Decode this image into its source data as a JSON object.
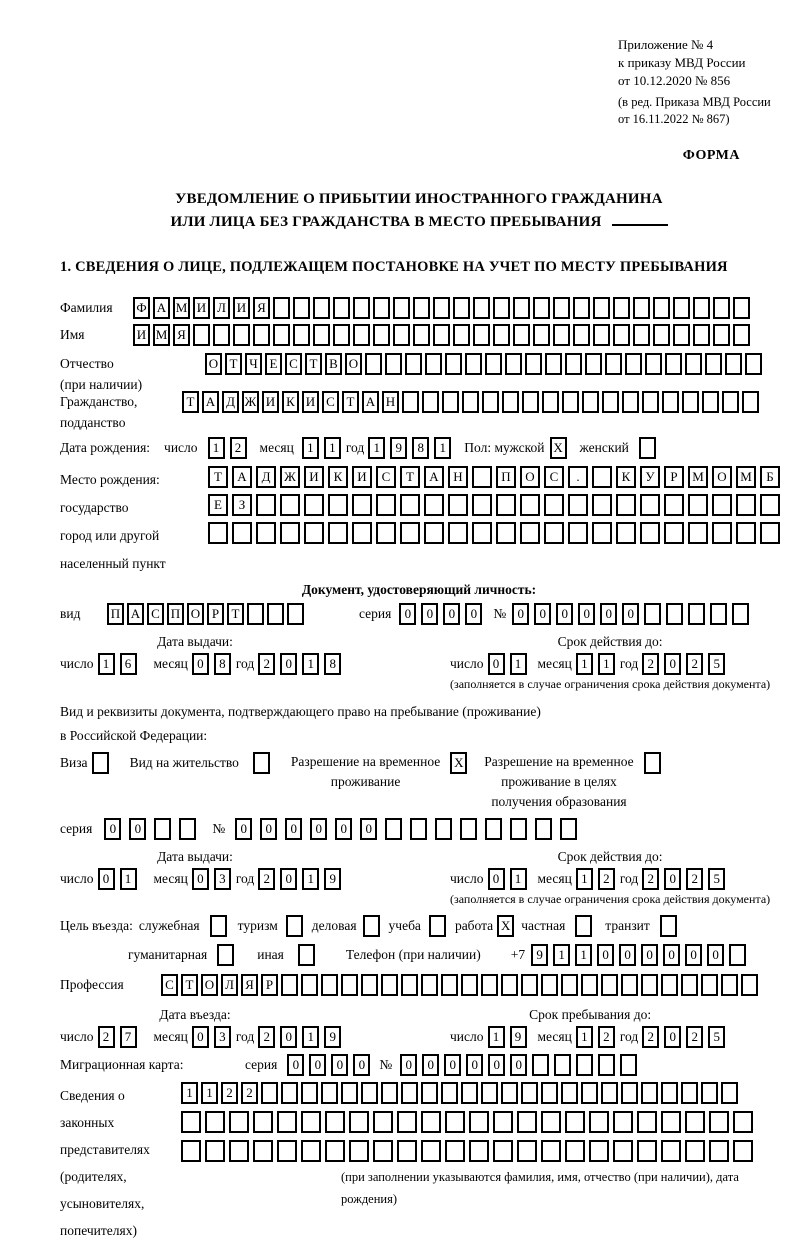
{
  "header": {
    "line1": "Приложение № 4",
    "line2": "к приказу МВД России",
    "line3": "от 10.12.2020 № 856",
    "line4": "(в ред. Приказа МВД России",
    "line5": "от 16.11.2022 № 867)",
    "forma": "ФОРМА"
  },
  "title": {
    "line1": "УВЕДОМЛЕНИЕ О ПРИБЫТИИ ИНОСТРАННОГО ГРАЖДАНИНА",
    "line2": "ИЛИ ЛИЦА БЕЗ ГРАЖДАНСТВА В МЕСТО ПРЕБЫВАНИЯ"
  },
  "section1": {
    "heading": "1. СВЕДЕНИЯ О ЛИЦЕ, ПОДЛЕЖАЩЕМ ПОСТАНОВКЕ НА УЧЕТ ПО МЕСТУ ПРЕБЫВАНИЯ"
  },
  "labels": {
    "surname": "Фамилия",
    "name": "Имя",
    "patronymic_l1": "Отчество",
    "patronymic_l2": "(при наличии)",
    "citizenship_l1": "Гражданство,",
    "citizenship_l2": "подданство",
    "birthdate": "Дата рождения:",
    "day": "число",
    "month": "месяц",
    "year": "год",
    "sex_male": "Пол: мужской",
    "sex_female": "женский",
    "birthplace_l1": "Место рождения:",
    "birthplace_l2": "государство",
    "birthplace_l3": "город или другой",
    "birthplace_l4": "населенный пункт",
    "doc_header": "Документ, удостоверяющий личность:",
    "doc_type": "вид",
    "series": "серия",
    "number": "№",
    "issue_date": "Дата выдачи:",
    "valid_until": "Срок действия до:",
    "valid_note": "(заполняется в случае ограничения срока действия документа)",
    "permit_intro_l1": "Вид и реквизиты документа, подтверждающего право на пребывание (проживание)",
    "permit_intro_l2": "в Российской Федерации:",
    "visa": "Виза",
    "residence_permit": "Вид на жительство",
    "temp_permit_l1": "Разрешение на временное",
    "temp_permit_l2": "проживание",
    "temp_edu_l1": "Разрешение на временное",
    "temp_edu_l2": "проживание в целях",
    "temp_edu_l3": "получения образования",
    "purpose": "Цель въезда:",
    "official": "служебная",
    "tourism": "туризм",
    "business": "деловая",
    "study": "учеба",
    "work": "работа",
    "private": "частная",
    "transit": "транзит",
    "humanitarian": "гуманитарная",
    "other": "иная",
    "phone": "Телефон (при наличии)",
    "phone_prefix": "+7",
    "profession": "Профессия",
    "entry_date": "Дата въезда:",
    "stay_until": "Срок пребывания до:",
    "migcard": "Миграционная карта:",
    "reps_l1": "Сведения о",
    "reps_l2": "законных",
    "reps_l3": "представителях",
    "reps_l4": "(родителях,",
    "reps_l5": "усыновителях,",
    "reps_l6": "попечителях)",
    "reps_note": "(при заполнении указываются фамилия, имя, отчество (при наличии), дата рождения)"
  },
  "fields": {
    "surname": {
      "value": "ФАМИЛИЯ",
      "count": 31
    },
    "name": {
      "value": "ИМЯ",
      "count": 31
    },
    "patronymic": {
      "value": "ОТЧЕСТВО",
      "count": 28
    },
    "citizenship": {
      "value": "ТАДЖИКИСТАН",
      "count": 29
    },
    "birth_day": {
      "value": "12",
      "count": 2
    },
    "birth_month": {
      "value": "11",
      "count": 2
    },
    "birth_year": {
      "value": "1981",
      "count": 4
    },
    "sex_male": {
      "value": "X",
      "count": 1
    },
    "sex_female": {
      "value": "",
      "count": 1
    },
    "birthplace_row1": {
      "value": "ТАДЖИКИСТАН ПОС. КУРМОМБ",
      "count": 24
    },
    "birthplace_row2": {
      "value": "ЕЗ",
      "count": 24
    },
    "birthplace_row3": {
      "value": "",
      "count": 24
    },
    "doc_type": {
      "value": "ПАСПОРТ",
      "count": 10
    },
    "doc_series": {
      "value": "0000",
      "count": 4
    },
    "doc_number": {
      "value": "000000",
      "count": 11
    },
    "doc_issue_day": {
      "value": "16",
      "count": 2
    },
    "doc_issue_month": {
      "value": "08",
      "count": 2
    },
    "doc_issue_year": {
      "value": "2018",
      "count": 4
    },
    "doc_valid_day": {
      "value": "01",
      "count": 2
    },
    "doc_valid_month": {
      "value": "11",
      "count": 2
    },
    "doc_valid_year": {
      "value": "2025",
      "count": 4
    },
    "visa": {
      "value": "",
      "count": 1
    },
    "residence_permit": {
      "value": "",
      "count": 1
    },
    "temp_permit": {
      "value": "X",
      "count": 1
    },
    "temp_edu": {
      "value": "",
      "count": 1
    },
    "permit_series": {
      "value": "00",
      "count": 4
    },
    "permit_number": {
      "value": "000000",
      "count": 14
    },
    "permit_issue_day": {
      "value": "01",
      "count": 2
    },
    "permit_issue_month": {
      "value": "03",
      "count": 2
    },
    "permit_issue_year": {
      "value": "2019",
      "count": 4
    },
    "permit_valid_day": {
      "value": "01",
      "count": 2
    },
    "permit_valid_month": {
      "value": "12",
      "count": 2
    },
    "permit_valid_year": {
      "value": "2025",
      "count": 4
    },
    "purpose_official": {
      "value": "",
      "count": 1
    },
    "purpose_tourism": {
      "value": "",
      "count": 1
    },
    "purpose_business": {
      "value": "",
      "count": 1
    },
    "purpose_study": {
      "value": "",
      "count": 1
    },
    "purpose_work": {
      "value": "X",
      "count": 1
    },
    "purpose_private": {
      "value": "",
      "count": 1
    },
    "purpose_transit": {
      "value": "",
      "count": 1
    },
    "purpose_humanitarian": {
      "value": "",
      "count": 1
    },
    "purpose_other": {
      "value": "",
      "count": 1
    },
    "phone": {
      "value": "911000000",
      "count": 10
    },
    "profession": {
      "value": "СТОЛЯР",
      "count": 30
    },
    "entry_day": {
      "value": "27",
      "count": 2
    },
    "entry_month": {
      "value": "03",
      "count": 2
    },
    "entry_year": {
      "value": "2019",
      "count": 4
    },
    "stay_day": {
      "value": "19",
      "count": 2
    },
    "stay_month": {
      "value": "12",
      "count": 2
    },
    "stay_year": {
      "value": "2025",
      "count": 4
    },
    "migcard_series": {
      "value": "0000",
      "count": 4
    },
    "migcard_number": {
      "value": "000000",
      "count": 11
    },
    "reps_row1": {
      "value": "1122",
      "count": 28
    },
    "reps_row2": {
      "value": "",
      "count": 24
    },
    "reps_row3": {
      "value": "",
      "count": 24
    }
  }
}
